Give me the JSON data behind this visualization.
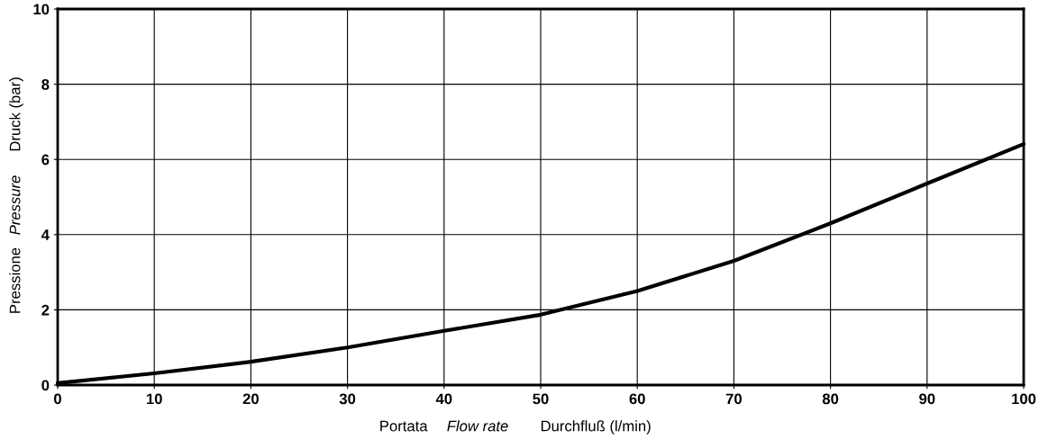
{
  "chart_data": {
    "type": "line",
    "xlabel": [
      "Portata",
      "Flow rate",
      "Durchfluß (l/min)"
    ],
    "ylabel": [
      "Pressione",
      "Pressure",
      "Druck (bar)"
    ],
    "x": [
      0,
      10,
      20,
      30,
      40,
      50,
      60,
      70,
      80,
      90,
      100
    ],
    "series": [
      {
        "color": "#000000",
        "values": [
          0.05,
          0.31,
          0.62,
          1.0,
          1.44,
          1.87,
          2.5,
          3.3,
          4.3,
          5.36,
          6.41
        ]
      }
    ],
    "xlim": [
      0,
      100
    ],
    "xticks": [
      0,
      10,
      20,
      30,
      40,
      50,
      60,
      70,
      80,
      90,
      100
    ],
    "ylim": [
      0,
      10
    ],
    "yticks": [
      0,
      2,
      4,
      6,
      8,
      10
    ],
    "grid": true,
    "marker": "none",
    "line_style": "solid"
  }
}
